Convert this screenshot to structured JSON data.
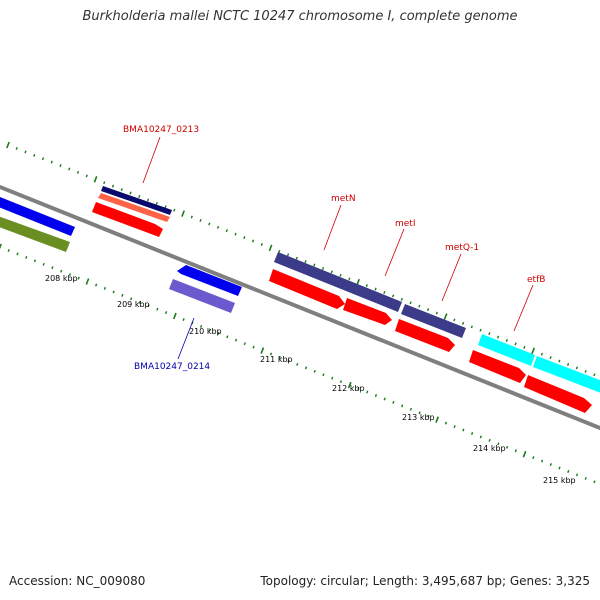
{
  "title": "Burkholderia mallei NCTC 10247 chromosome I, complete genome",
  "footer": {
    "accession": "Accession: NC_009080",
    "summary": "Topology: circular; Length: 3,495,687 bp; Genes: 3,325"
  },
  "colors": {
    "backbone": "#808080",
    "tick": "#1a7a1a",
    "forward_gene": "#ff0000",
    "label_forward": "#cc0000",
    "label_reverse": "#0000aa"
  },
  "ticks": [
    {
      "label": "208 kbp"
    },
    {
      "label": "209 kbp"
    },
    {
      "label": "210 kbp"
    },
    {
      "label": "211 kbp"
    },
    {
      "label": "212 kbp"
    },
    {
      "label": "213 kbp"
    },
    {
      "label": "214 kbp"
    },
    {
      "label": "215 kbp"
    }
  ],
  "gene_labels": [
    {
      "name": "BMA10247_0213"
    },
    {
      "name": "BMA10247_0214"
    },
    {
      "name": "metN"
    },
    {
      "name": "metI"
    },
    {
      "name": "metQ-1"
    },
    {
      "name": "etfB"
    }
  ]
}
